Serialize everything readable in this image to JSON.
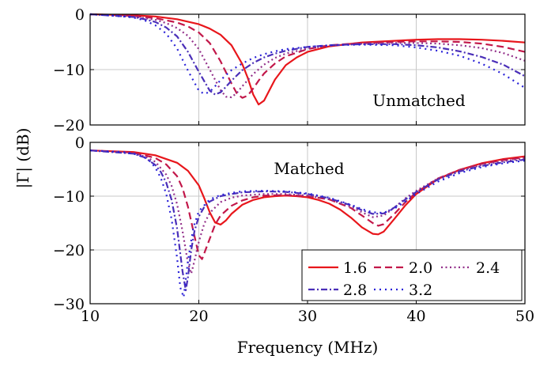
{
  "chart_data": [
    {
      "type": "line",
      "panel": "top",
      "label": "Unmatched",
      "xlim": [
        10,
        50
      ],
      "ylim": [
        -20,
        0
      ],
      "yticks": [
        0,
        -10,
        -20
      ],
      "ytick_labels": [
        "0",
        "−10",
        "−20"
      ],
      "grid": true,
      "series": [
        {
          "name": "1.6",
          "x": [
            10,
            14,
            16,
            18,
            20,
            21,
            22,
            23,
            24,
            24.5,
            25,
            25.5,
            26,
            26.5,
            27,
            28,
            29,
            30,
            32,
            35,
            38,
            40,
            42,
            44,
            46,
            48,
            50
          ],
          "y": [
            0,
            -0.2,
            -0.4,
            -0.9,
            -1.8,
            -2.6,
            -3.7,
            -5.6,
            -9,
            -11.5,
            -14.5,
            -16.3,
            -15.6,
            -13.7,
            -11.8,
            -9.2,
            -7.8,
            -6.8,
            -5.8,
            -5.1,
            -4.8,
            -4.6,
            -4.5,
            -4.5,
            -4.6,
            -4.8,
            -5.1
          ]
        },
        {
          "name": "2.0",
          "x": [
            10,
            14,
            16,
            18,
            19,
            20,
            21,
            22,
            23,
            23.5,
            24,
            24.5,
            25,
            25.5,
            26,
            27,
            28,
            30,
            32,
            35,
            38,
            40,
            42,
            44,
            46,
            48,
            50
          ],
          "y": [
            0,
            -0.3,
            -0.7,
            -1.5,
            -2.2,
            -3.3,
            -5.2,
            -8.5,
            -12.5,
            -14.3,
            -15.1,
            -14.7,
            -13.4,
            -12,
            -10.7,
            -8.9,
            -7.6,
            -6.3,
            -5.6,
            -5.2,
            -5,
            -4.9,
            -4.9,
            -5,
            -5.3,
            -5.9,
            -6.8
          ]
        },
        {
          "name": "2.4",
          "x": [
            10,
            14,
            16,
            17,
            18,
            19,
            20,
            21,
            22,
            22.5,
            23,
            23.5,
            24,
            25,
            26,
            27,
            28,
            30,
            32,
            35,
            38,
            40,
            42,
            44,
            46,
            48,
            50
          ],
          "y": [
            0,
            -0.4,
            -1,
            -1.6,
            -2.5,
            -3.9,
            -6.3,
            -10,
            -13.7,
            -14.9,
            -15,
            -14.2,
            -13,
            -10.8,
            -9.1,
            -7.9,
            -7.1,
            -6.2,
            -5.7,
            -5.3,
            -5.2,
            -5.2,
            -5.3,
            -5.6,
            -6.1,
            -7,
            -8.4
          ]
        },
        {
          "name": "2.8",
          "x": [
            10,
            14,
            15,
            16,
            17,
            18,
            19,
            20,
            21,
            21.5,
            22,
            22.5,
            23,
            24,
            25,
            26,
            27,
            28,
            30,
            32,
            35,
            38,
            40,
            42,
            44,
            46,
            48,
            50
          ],
          "y": [
            0,
            -0.5,
            -0.9,
            -1.4,
            -2.4,
            -4,
            -6.8,
            -10.4,
            -13.8,
            -14.5,
            -14.1,
            -13.1,
            -12,
            -10.1,
            -8.8,
            -7.8,
            -7.1,
            -6.6,
            -5.9,
            -5.6,
            -5.4,
            -5.4,
            -5.6,
            -6,
            -6.7,
            -7.7,
            -9.1,
            -11.2
          ]
        },
        {
          "name": "3.2",
          "x": [
            10,
            13,
            14,
            15,
            16,
            17,
            18,
            19,
            20,
            20.5,
            21,
            21.5,
            22,
            23,
            24,
            25,
            26,
            27,
            28,
            30,
            32,
            35,
            38,
            40,
            42,
            44,
            46,
            48,
            50
          ],
          "y": [
            0,
            -0.4,
            -0.6,
            -1.1,
            -2,
            -3.5,
            -6.2,
            -10.2,
            -13.8,
            -14.4,
            -14,
            -13,
            -11.9,
            -10.1,
            -8.9,
            -7.9,
            -7.2,
            -6.7,
            -6.3,
            -5.9,
            -5.6,
            -5.5,
            -5.6,
            -6,
            -6.6,
            -7.5,
            -8.9,
            -10.8,
            -13.3
          ]
        }
      ]
    },
    {
      "type": "line",
      "panel": "bottom",
      "label": "Matched",
      "xlim": [
        10,
        50
      ],
      "ylim": [
        -30,
        0
      ],
      "xticks": [
        10,
        20,
        30,
        40,
        50
      ],
      "xtick_labels": [
        "10",
        "20",
        "30",
        "40",
        "50"
      ],
      "yticks": [
        0,
        -10,
        -20,
        -30
      ],
      "ytick_labels": [
        "0",
        "−10",
        "−20",
        "−30"
      ],
      "grid": true,
      "legend": {
        "location": "bottom-right",
        "columns": 3
      },
      "series": [
        {
          "name": "1.6",
          "x": [
            10,
            14,
            16,
            18,
            19,
            20,
            20.5,
            21,
            21.5,
            22,
            22.5,
            23,
            24,
            25,
            26,
            27,
            28,
            29,
            30,
            31,
            32,
            33,
            34,
            35,
            36,
            36.5,
            37,
            38,
            39,
            40,
            42,
            44,
            46,
            48,
            50
          ],
          "y": [
            -1.5,
            -1.8,
            -2.4,
            -3.8,
            -5.3,
            -8,
            -10.4,
            -13,
            -14.9,
            -15.3,
            -14.5,
            -13.3,
            -11.6,
            -10.7,
            -10.2,
            -10,
            -9.9,
            -10,
            -10.2,
            -10.7,
            -11.4,
            -12.5,
            -14,
            -15.8,
            -17,
            -17.1,
            -16.6,
            -14.2,
            -11.7,
            -9.6,
            -6.8,
            -5.1,
            -3.9,
            -3.1,
            -2.6
          ]
        },
        {
          "name": "2.0",
          "x": [
            10,
            14,
            16,
            17,
            18,
            18.5,
            19,
            19.5,
            20,
            20.3,
            20.8,
            21.5,
            22,
            23,
            24,
            25,
            26,
            28,
            30,
            32,
            34,
            35,
            36,
            36.5,
            37,
            38,
            39,
            40,
            42,
            44,
            46,
            48,
            50
          ],
          "y": [
            -1.5,
            -1.9,
            -2.9,
            -4.1,
            -6.3,
            -8.5,
            -12,
            -16.5,
            -21,
            -21.7,
            -19,
            -15.3,
            -13.6,
            -11.8,
            -10.8,
            -10.2,
            -9.9,
            -9.8,
            -10,
            -10.6,
            -12.2,
            -13.6,
            -15,
            -15.5,
            -15.2,
            -13.3,
            -11.1,
            -9.3,
            -6.7,
            -5.1,
            -4,
            -3.3,
            -2.8
          ]
        },
        {
          "name": "2.4",
          "x": [
            10,
            14,
            15,
            16,
            17,
            17.5,
            18,
            18.5,
            19,
            19.3,
            19.6,
            20,
            20.5,
            21,
            22,
            23,
            24,
            26,
            28,
            30,
            32,
            34,
            35,
            36,
            37,
            38,
            39,
            40,
            42,
            44,
            46,
            48,
            50
          ],
          "y": [
            -1.5,
            -2,
            -2.6,
            -3.6,
            -6,
            -8.1,
            -11.5,
            -16.5,
            -22.5,
            -24.4,
            -22,
            -18.5,
            -15.1,
            -13.1,
            -11.1,
            -10.3,
            -9.9,
            -9.6,
            -9.6,
            -9.9,
            -10.6,
            -12,
            -13,
            -13.9,
            -13.6,
            -12.1,
            -10.4,
            -9,
            -6.7,
            -5.2,
            -4.2,
            -3.5,
            -3
          ]
        },
        {
          "name": "2.8",
          "x": [
            10,
            14,
            15,
            16,
            16.5,
            17,
            17.5,
            18,
            18.5,
            18.8,
            19,
            19.3,
            19.6,
            20,
            20.5,
            21,
            22,
            23,
            24,
            26,
            28,
            30,
            32,
            34,
            35,
            36,
            37,
            38,
            39,
            40,
            42,
            44,
            46,
            48,
            50
          ],
          "y": [
            -1.5,
            -2.1,
            -2.8,
            -4.2,
            -5.5,
            -7.5,
            -10.7,
            -16,
            -24,
            -27.5,
            -25,
            -20,
            -16.5,
            -13.8,
            -12,
            -11,
            -10,
            -9.6,
            -9.3,
            -9.1,
            -9.2,
            -9.6,
            -10.4,
            -11.7,
            -12.6,
            -13.3,
            -13.2,
            -12.1,
            -10.6,
            -9.2,
            -6.9,
            -5.4,
            -4.4,
            -3.7,
            -3.2
          ]
        },
        {
          "name": "3.2",
          "x": [
            10,
            13,
            14,
            15,
            15.5,
            16,
            16.5,
            17,
            17.5,
            18,
            18.3,
            18.6,
            19,
            19.5,
            20,
            21,
            22,
            23,
            24,
            26,
            28,
            30,
            32,
            34,
            35,
            36,
            37,
            38,
            39,
            40,
            42,
            44,
            46,
            48,
            50
          ],
          "y": [
            -1.5,
            -1.8,
            -2.1,
            -2.8,
            -3.5,
            -4.7,
            -6.6,
            -9.6,
            -14.3,
            -21.5,
            -27,
            -28.8,
            -22,
            -15.8,
            -12.8,
            -10.6,
            -9.8,
            -9.4,
            -9.1,
            -9,
            -9.1,
            -9.5,
            -10.3,
            -11.6,
            -12.4,
            -13,
            -13.1,
            -12.3,
            -11,
            -9.6,
            -7.3,
            -5.7,
            -4.6,
            -3.9,
            -3.4
          ]
        }
      ]
    }
  ],
  "axes": {
    "xlabel": "Frequency (MHz)",
    "ylabel": "|Γ| (dB)"
  },
  "styles": [
    {
      "series": "1.6",
      "color": "#e8161b",
      "dash": "none"
    },
    {
      "series": "2.0",
      "color": "#c2184a",
      "dash": "9 5"
    },
    {
      "series": "2.4",
      "color": "#93308a",
      "dash": "2 3.5"
    },
    {
      "series": "2.8",
      "color": "#4a2fb8",
      "dash": "8 3 2 3"
    },
    {
      "series": "3.2",
      "color": "#2a22d8",
      "dash": "2 5"
    }
  ]
}
